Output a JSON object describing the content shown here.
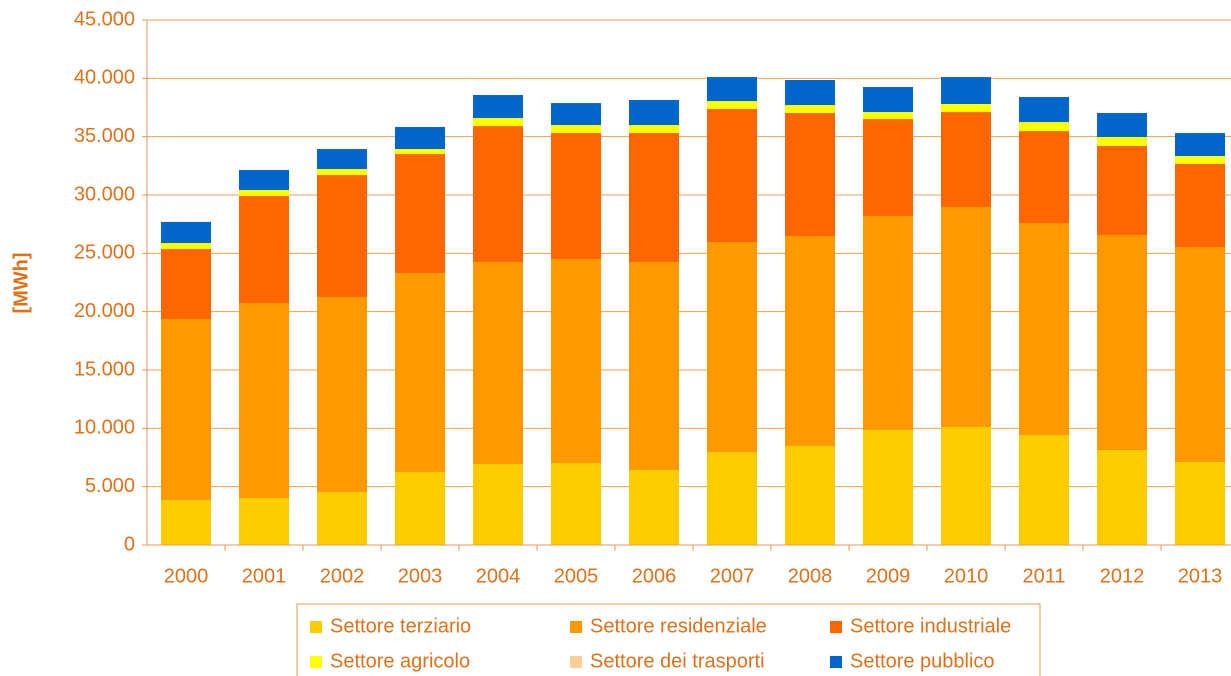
{
  "chart_data": {
    "type": "stacked_bar",
    "y_label": "[MWh]",
    "categories": [
      "2000",
      "2001",
      "2002",
      "2003",
      "2004",
      "2005",
      "2006",
      "2007",
      "2008",
      "2009",
      "2010",
      "2011",
      "2012",
      "2013"
    ],
    "series": [
      {
        "name": "Settore terziario",
        "color": "#ffcc00",
        "values": [
          3860,
          4030,
          4540,
          6260,
          6940,
          7030,
          6430,
          7970,
          8490,
          9860,
          10110,
          9430,
          8140,
          7110
        ]
      },
      {
        "name": "Settore residenziale",
        "color": "#ff9900",
        "values": [
          15510,
          16710,
          16720,
          17050,
          17320,
          17480,
          17830,
          18000,
          17990,
          18340,
          18860,
          18170,
          18430,
          18430
        ]
      },
      {
        "name": "Settore industriale",
        "color": "#ff6600",
        "values": [
          6000,
          9170,
          10450,
          10200,
          11650,
          10800,
          11050,
          11400,
          10550,
          8310,
          8140,
          7880,
          7630,
          7120
        ]
      },
      {
        "name": "Settore agricolo",
        "color": "#ffff00",
        "values": [
          510,
          520,
          520,
          430,
          690,
          690,
          690,
          680,
          680,
          600,
          690,
          770,
          770,
          680
        ]
      },
      {
        "name": "Settore dei trasporti",
        "color": "#ffcc99",
        "values": [
          0,
          0,
          0,
          0,
          0,
          0,
          0,
          0,
          0,
          0,
          0,
          0,
          0,
          0
        ]
      },
      {
        "name": "Settore pubblico",
        "color": "#0066cc",
        "values": [
          1810,
          1710,
          1710,
          1890,
          1970,
          1880,
          2140,
          2060,
          2150,
          2150,
          2310,
          2150,
          2060,
          1970
        ]
      }
    ],
    "ylim": [
      0,
      45000
    ],
    "yticks": [
      0,
      {
        "value": 5000,
        "label": "5.000"
      },
      {
        "value": 10000,
        "label": "10.000"
      },
      {
        "value": 15000,
        "label": "15.000"
      },
      {
        "value": 20000,
        "label": "20.000"
      },
      {
        "value": 25000,
        "label": "25.000"
      },
      {
        "value": 30000,
        "label": "30.000"
      },
      {
        "value": 35000,
        "label": "35.000"
      },
      {
        "value": 40000,
        "label": "40.000"
      },
      {
        "value": 45000,
        "label": "45.000"
      }
    ],
    "grid": true,
    "legend": "bottom"
  }
}
